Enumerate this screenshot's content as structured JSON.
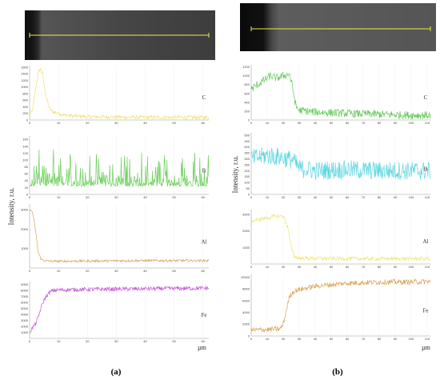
{
  "y_axis_label": "Intensity, r.u.",
  "unit_label": "µm",
  "panels": [
    {
      "caption": "(a)",
      "micrograph": {
        "description_colors": {
          "dark": "#151515",
          "surface": "#4a4a4a",
          "scanline": "#f2e84a"
        }
      },
      "x_ticks": [
        0,
        10,
        20,
        30,
        40,
        50,
        60
      ],
      "x_range": [
        0,
        62
      ],
      "profiles": [
        {
          "element": "C",
          "color": "#f0e27a",
          "y_ticks": [
            0,
            200,
            400,
            600,
            800,
            1000,
            1200,
            1400,
            1600
          ],
          "y_range": [
            0,
            1650
          ],
          "points": [
            [
              0,
              150
            ],
            [
              1,
              300
            ],
            [
              2,
              900
            ],
            [
              3,
              1450
            ],
            [
              3.7,
              1550
            ],
            [
              4.5,
              1400
            ],
            [
              5,
              1050
            ],
            [
              6,
              600
            ],
            [
              7,
              350
            ],
            [
              8,
              250
            ],
            [
              10,
              200
            ],
            [
              12,
              150
            ],
            [
              15,
              120
            ],
            [
              20,
              100
            ],
            [
              30,
              90
            ],
            [
              40,
              80
            ],
            [
              50,
              80
            ],
            [
              60,
              80
            ],
            [
              62,
              80
            ]
          ],
          "noise": 60
        },
        {
          "element": "B",
          "color": "#6ccf5a",
          "y_ticks": [
            0,
            20,
            40,
            60,
            80,
            100,
            120,
            140,
            160
          ],
          "y_range": [
            0,
            170
          ],
          "points": [
            [
              0,
              40
            ],
            [
              62,
              40
            ]
          ],
          "noise": 55,
          "spiky": true
        },
        {
          "element": "Al",
          "color": "#d3a45a",
          "y_ticks": [
            1000,
            2000,
            3000
          ],
          "y_range": [
            0,
            3300
          ],
          "points": [
            [
              0,
              3000
            ],
            [
              1,
              2900
            ],
            [
              2,
              2000
            ],
            [
              3,
              800
            ],
            [
              4,
              450
            ],
            [
              5,
              380
            ],
            [
              8,
              350
            ],
            [
              20,
              360
            ],
            [
              40,
              380
            ],
            [
              60,
              380
            ],
            [
              62,
              380
            ]
          ],
          "noise": 60
        },
        {
          "element": "Fe",
          "color": "#c455d6",
          "y_ticks": [
            1000,
            2000,
            3000,
            4000,
            5000,
            6000,
            7000,
            8000,
            9000
          ],
          "y_range": [
            0,
            9500
          ],
          "points": [
            [
              0,
              1000
            ],
            [
              1,
              1800
            ],
            [
              2,
              2400
            ],
            [
              3,
              3500
            ],
            [
              4,
              5200
            ],
            [
              5,
              6400
            ],
            [
              6,
              7200
            ],
            [
              7,
              7700
            ],
            [
              8,
              8000
            ],
            [
              10,
              8100
            ],
            [
              20,
              8200
            ],
            [
              40,
              8300
            ],
            [
              60,
              8400
            ],
            [
              62,
              8400
            ]
          ],
          "noise": 350
        }
      ]
    },
    {
      "caption": "(b)",
      "micrograph": {
        "description_colors": {
          "dark": "#0d0d0d",
          "surface": "#5c5c5c",
          "scanline": "#f2e84a"
        }
      },
      "x_ticks": [
        0,
        10,
        20,
        30,
        40,
        50,
        60,
        70,
        80,
        90,
        100,
        110
      ],
      "x_range": [
        0,
        112
      ],
      "profiles": [
        {
          "element": "C",
          "color": "#66c95a",
          "y_ticks": [
            0,
            200,
            400,
            600,
            800,
            1000,
            1200
          ],
          "y_range": [
            0,
            1250
          ],
          "points": [
            [
              0,
              700
            ],
            [
              4,
              800
            ],
            [
              8,
              900
            ],
            [
              12,
              1000
            ],
            [
              16,
              950
            ],
            [
              20,
              1000
            ],
            [
              24,
              1050
            ],
            [
              26,
              700
            ],
            [
              28,
              300
            ],
            [
              30,
              220
            ],
            [
              40,
              180
            ],
            [
              60,
              150
            ],
            [
              80,
              130
            ],
            [
              100,
              110
            ],
            [
              112,
              110
            ]
          ],
          "noise": 90
        },
        {
          "element": "B",
          "color": "#5fd6e0",
          "y_ticks": [
            0,
            50,
            100,
            150,
            200,
            250,
            300,
            350,
            400,
            450,
            500
          ],
          "y_range": [
            0,
            520
          ],
          "points": [
            [
              0,
              300
            ],
            [
              10,
              330
            ],
            [
              20,
              310
            ],
            [
              26,
              290
            ],
            [
              30,
              220
            ],
            [
              40,
              200
            ],
            [
              60,
              210
            ],
            [
              80,
              200
            ],
            [
              100,
              200
            ],
            [
              112,
              200
            ]
          ],
          "noise": 80
        },
        {
          "element": "Al",
          "color": "#eee77a",
          "y_ticks": [
            1000,
            2000,
            3000
          ],
          "y_range": [
            0,
            3300
          ],
          "points": [
            [
              0,
              2600
            ],
            [
              5,
              2700
            ],
            [
              10,
              2800
            ],
            [
              15,
              2900
            ],
            [
              20,
              2900
            ],
            [
              23,
              2200
            ],
            [
              25,
              1000
            ],
            [
              27,
              450
            ],
            [
              30,
              350
            ],
            [
              50,
              330
            ],
            [
              80,
              320
            ],
            [
              112,
              320
            ]
          ],
          "noise": 120
        },
        {
          "element": "Fe",
          "color": "#d9a458",
          "y_ticks": [
            0,
            2000,
            4000,
            6000,
            8000,
            10000
          ],
          "y_range": [
            0,
            10500
          ],
          "points": [
            [
              0,
              1000
            ],
            [
              10,
              1100
            ],
            [
              18,
              1200
            ],
            [
              20,
              2000
            ],
            [
              22,
              4500
            ],
            [
              24,
              6800
            ],
            [
              27,
              7700
            ],
            [
              30,
              7900
            ],
            [
              40,
              8500
            ],
            [
              60,
              9000
            ],
            [
              80,
              9200
            ],
            [
              100,
              9200
            ],
            [
              112,
              9300
            ]
          ],
          "noise": 450
        }
      ]
    }
  ]
}
